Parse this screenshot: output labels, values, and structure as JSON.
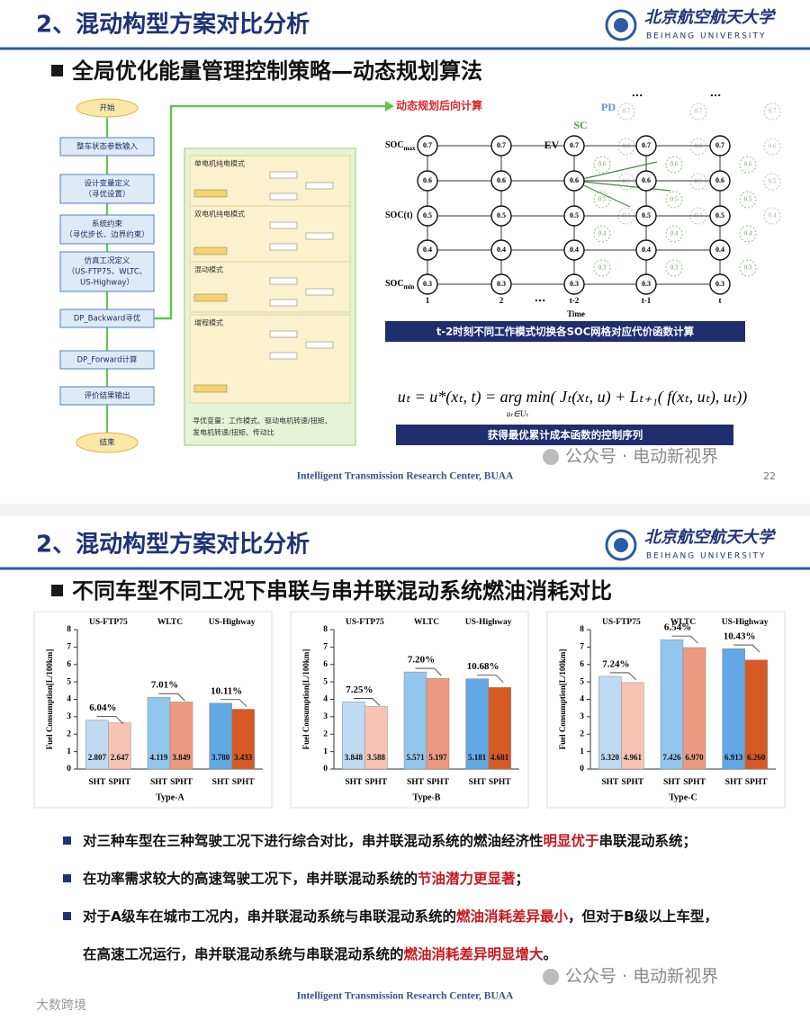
{
  "slide1": {
    "header": "2、混动构型方案对比分析",
    "logo_cn": "北京航空航天大学",
    "logo_en": "BEIHANG UNIVERSITY",
    "subtitle": "全局优化能量管理控制策略—动态规划算法",
    "flow": {
      "nodes": [
        [
          "开始"
        ],
        [
          "整车状态参数输入"
        ],
        [
          "设计变量定义",
          "（寻优设置）"
        ],
        [
          "系统约束",
          "（寻优步长、边界约束）"
        ],
        [
          "仿真工况定义",
          "（US-FTP75、WLTC、",
          "US-Highway）"
        ],
        [
          "DP_Backward寻优"
        ],
        [
          "DP_Forward计算"
        ],
        [
          "评价结果输出"
        ],
        [
          "结束"
        ]
      ]
    },
    "panel": {
      "modes": [
        "单电机纯电模式",
        "双电机纯电模式",
        "混动模式",
        "增程模式"
      ],
      "note": [
        "寻优变量：工作模式、驱动电机转速/扭矩、",
        "发电机转速/扭矩、传动比"
      ]
    },
    "dp": {
      "title": "动态规划后向计算",
      "soc_labels": [
        {
          "text": "SOC",
          "sub": "max"
        },
        {
          "text": "SOC(t)",
          "sub": ""
        },
        {
          "text": "SOC",
          "sub": "min"
        }
      ],
      "levels": [
        0.7,
        0.6,
        0.5,
        0.4,
        0.3
      ],
      "columns": [
        "1",
        "2",
        "t-2",
        "t-1",
        "t"
      ],
      "ellipsis": "...",
      "x_label": "Time",
      "modes": [
        "EV",
        "SC",
        "PD"
      ]
    },
    "banner1": "t-2时刻不同工作模式切换各SOC网格对应代价函数计算",
    "formula": "uₜ = u*(xₜ, t) = arg min( Jₜ(xₜ, u) + Lₜ₊₁( f(xₜ, uₜ), uₜ))",
    "formula_sub": "uₜ∈Uₜ",
    "banner2": "获得最优累计成本函数的控制序列",
    "footer": "Intelligent Transmission Research Center, BUAA",
    "page": 22,
    "watermark": "公众号 · 电动新视界"
  },
  "slide2": {
    "header": "2、混动构型方案对比分析",
    "logo_cn": "北京航空航天大学",
    "logo_en": "BEIHANG UNIVERSITY",
    "subtitle": "不同车型不同工况下串联与串并联混动系统燃油消耗对比",
    "bullets": [
      [
        [
          "对三种车型在三种驾驶工况下进行综合对比，串并联混动系统的燃油经济性",
          "明显优于",
          "串联混动系统；"
        ]
      ],
      [
        [
          "在功率需求较大的高速驾驶工况下，串并联混动系统的",
          "节油潜力更显著",
          "；"
        ]
      ],
      [
        [
          "对于A级车在城市工况内，串并联混动系统与串联混动系统的",
          "燃油消耗差异最小",
          "，但对于B级以上车型，"
        ],
        [
          "在高速工况运行，串并联混动系统与串联混动系统的",
          "燃油消耗差异明显增大",
          "。"
        ]
      ]
    ],
    "footer": "Intelligent Transmission Research Center, BUAA",
    "watermark": "公众号 · 电动新视界",
    "corner_mark": "大数跨境"
  },
  "chart_data": [
    {
      "type": "bar",
      "title": "Type-A",
      "ylabel": "Fuel Consumption[L/100km]",
      "categories": [
        "US-FTP75",
        "WLTC",
        "US-Highway"
      ],
      "series": [
        {
          "name": "SHT",
          "colors": [
            "#bcdaf2",
            "#93c6ee",
            "#62a8e4"
          ],
          "values": [
            2.807,
            4.119,
            3.78
          ],
          "value_labels": [
            "2.807",
            "4.119",
            "3.780"
          ]
        },
        {
          "name": "SPHT",
          "colors": [
            "#f6c3b4",
            "#ee9a80",
            "#d65a25"
          ],
          "values": [
            2.647,
            3.849,
            3.433
          ],
          "value_labels": [
            "2.647",
            "3.849",
            "3.433"
          ]
        }
      ],
      "annotations": [
        "6.04%",
        "7.01%",
        "10.11%"
      ],
      "ylim": [
        0,
        8
      ],
      "yticks": [
        0,
        1,
        2,
        3,
        4,
        5,
        6,
        7,
        8
      ]
    },
    {
      "type": "bar",
      "title": "Type-B",
      "ylabel": "Fuel Consumption[L/100km]",
      "categories": [
        "US-FTP75",
        "WLTC",
        "US-Highway"
      ],
      "series": [
        {
          "name": "SHT",
          "colors": [
            "#bcdaf2",
            "#93c6ee",
            "#62a8e4"
          ],
          "values": [
            3.848,
            5.571,
            5.181
          ],
          "value_labels": [
            "3.848",
            "5.571",
            "5.181"
          ]
        },
        {
          "name": "SPHT",
          "colors": [
            "#f6c3b4",
            "#ee9a80",
            "#d65a25"
          ],
          "values": [
            3.588,
            5.197,
            4.681
          ],
          "value_labels": [
            "3.588",
            "5.197",
            "4.681"
          ]
        }
      ],
      "annotations": [
        "7.25%",
        "7.20%",
        "10.68%"
      ],
      "ylim": [
        0,
        8
      ],
      "yticks": [
        0,
        1,
        2,
        3,
        4,
        5,
        6,
        7,
        8
      ]
    },
    {
      "type": "bar",
      "title": "Type-C",
      "ylabel": "Fuel Consumption[L/100km]",
      "categories": [
        "US-FTP75",
        "WLTC",
        "US-Highway"
      ],
      "series": [
        {
          "name": "SHT",
          "colors": [
            "#bcdaf2",
            "#93c6ee",
            "#62a8e4"
          ],
          "values": [
            5.32,
            7.426,
            6.913
          ],
          "value_labels": [
            "5.320",
            "7.426",
            "6.913"
          ]
        },
        {
          "name": "SPHT",
          "colors": [
            "#f6c3b4",
            "#ee9a80",
            "#d65a25"
          ],
          "values": [
            4.961,
            6.97,
            6.26
          ],
          "value_labels": [
            "4.961",
            "6.970",
            "6.260"
          ]
        }
      ],
      "annotations": [
        "7.24%",
        "6.54%",
        "10.43%"
      ],
      "ylim": [
        0,
        8
      ],
      "yticks": [
        0,
        1,
        2,
        3,
        4,
        5,
        6,
        7,
        8
      ]
    }
  ]
}
